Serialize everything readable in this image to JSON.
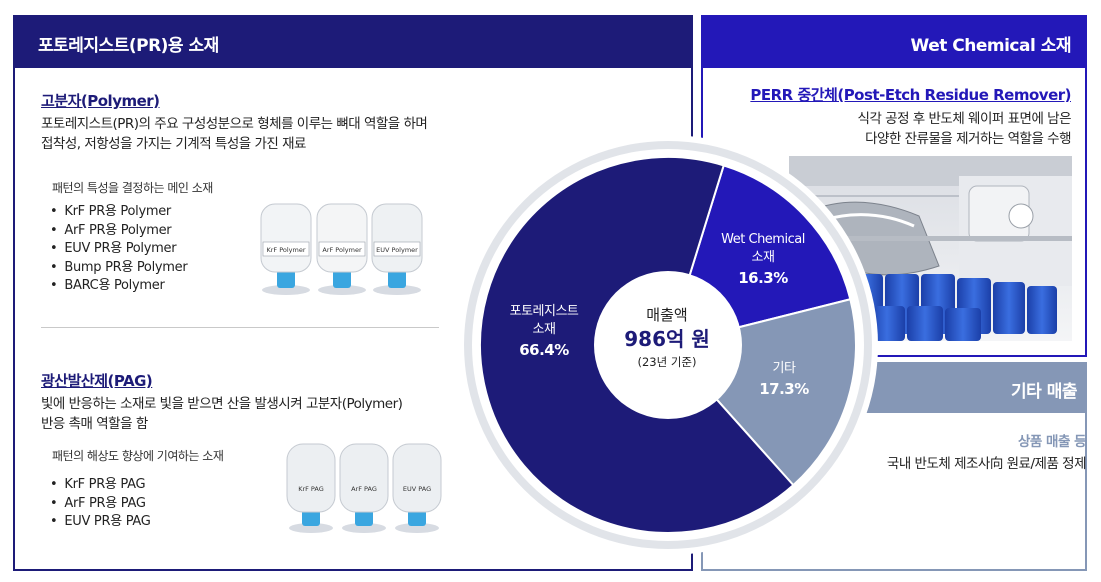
{
  "left_panel": {
    "title": "포토레지스트(PR)용 소재",
    "polymer": {
      "title": "고분자(Polymer)",
      "desc_lines": [
        "포토레지스트(PR)의 주요 구성성분으로 형체를 이루는 뼈대 역할을 하며",
        "접착성, 저항성을 가지는 기계적 특성을 가진 재료"
      ],
      "subtitle": "패턴의 특성을 결정하는 메인 소재",
      "items": [
        "KrF PR용 Polymer",
        "ArF PR용 Polymer",
        "EUV PR용 Polymer",
        "Bump PR용 Polymer",
        "BARC용 Polymer"
      ],
      "bottle_labels": [
        "KrF Polymer",
        "ArF Polymer",
        "EUV Polymer"
      ]
    },
    "pag": {
      "title": "광산발산제(PAG)",
      "desc_lines": [
        "빛에 반응하는 소재로 빛을 받으면 산을 발생시켜 고분자(Polymer)",
        "반응 촉매 역할을 함"
      ],
      "subtitle": "패턴의 해상도 향상에 기여하는 소재",
      "items": [
        "KrF PR용 PAG",
        "ArF PR용 PAG",
        "EUV PR용 PAG"
      ],
      "bottle_labels": [
        "KrF PAG",
        "ArF PAG",
        "EUV PAG"
      ]
    }
  },
  "wet_panel": {
    "title": "Wet Chemical 소재",
    "sub_title": "PERR 중간체(Post-Etch Residue Remover)",
    "desc_lines": [
      "식각 공정 후 반도체 웨이퍼 표면에 남은",
      "다양한 잔류물을 제거하는 역할을 수행"
    ]
  },
  "etc_panel": {
    "title": "기타 매출",
    "sub_title": "상품 매출 등",
    "desc": "국내 반도체 제조사向 원료/제품 정제"
  },
  "center": {
    "label": "매출액",
    "value": "986억 원",
    "note": "(23년 기준)"
  },
  "chart_data": {
    "type": "pie",
    "slices": [
      {
        "name_lines": [
          "포토레지스트",
          "소재"
        ],
        "pct_label": "66.4%",
        "value": 66.4,
        "color": "#1d1b78"
      },
      {
        "name_lines": [
          "Wet Chemical",
          "소재"
        ],
        "pct_label": "16.3%",
        "value": 16.3,
        "color": "#2318b8"
      },
      {
        "name_lines": [
          "기타"
        ],
        "pct_label": "17.3%",
        "value": 17.3,
        "color": "#8597b6"
      }
    ]
  },
  "colors": {
    "navy": "#1d1b78",
    "blue": "#2318b8",
    "grey_blue": "#8597b6"
  }
}
